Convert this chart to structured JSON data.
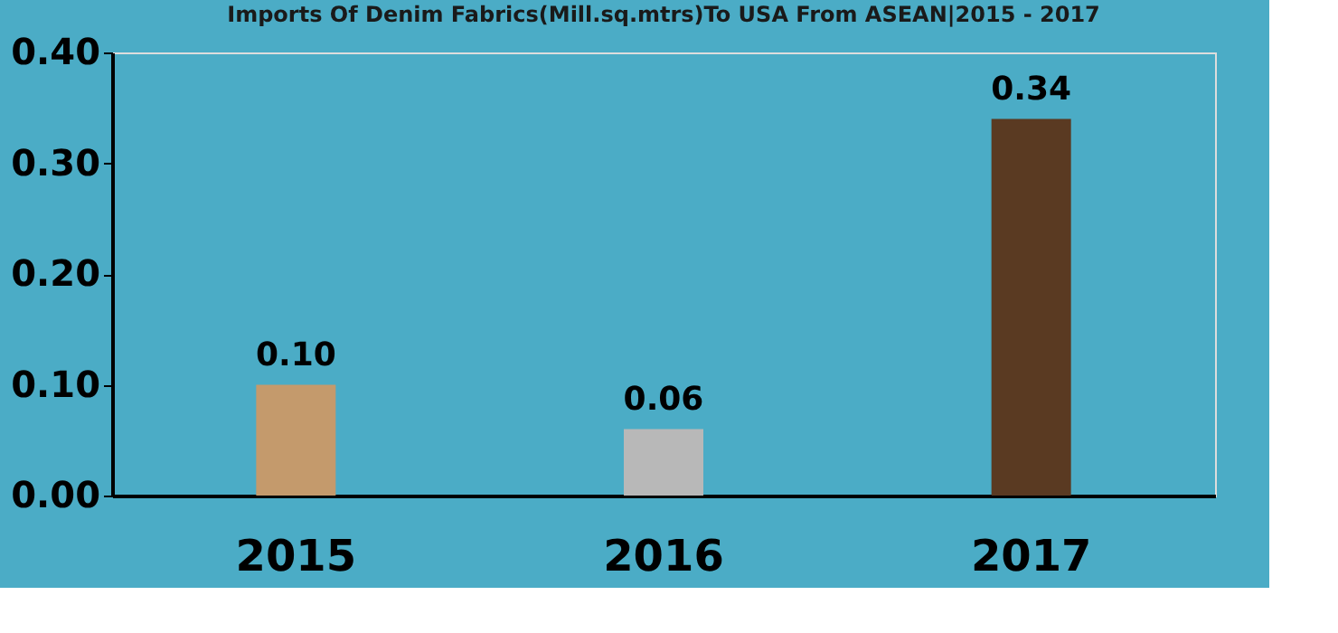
{
  "chart_data": {
    "type": "bar",
    "title": "Imports Of Denim Fabrics(Mill.sq.mtrs)To USA From ASEAN|2015 - 2017",
    "categories": [
      "2015",
      "2016",
      "2017"
    ],
    "values": [
      0.1,
      0.06,
      0.34
    ],
    "colors": [
      "#c49a6c",
      "#b8b8b8",
      "#5a3a22"
    ],
    "ylim": [
      0,
      0.4
    ],
    "yticks": [
      {
        "value": 0,
        "label": "0.00"
      },
      {
        "value": 0.1,
        "label": "0.10"
      },
      {
        "value": 0.2,
        "label": "0.20"
      },
      {
        "value": 0.3,
        "label": "0.30"
      },
      {
        "value": 0.4,
        "label": "0.40"
      }
    ],
    "grid": false,
    "value_labels": [
      "0.10",
      "0.06",
      "0.34"
    ]
  }
}
